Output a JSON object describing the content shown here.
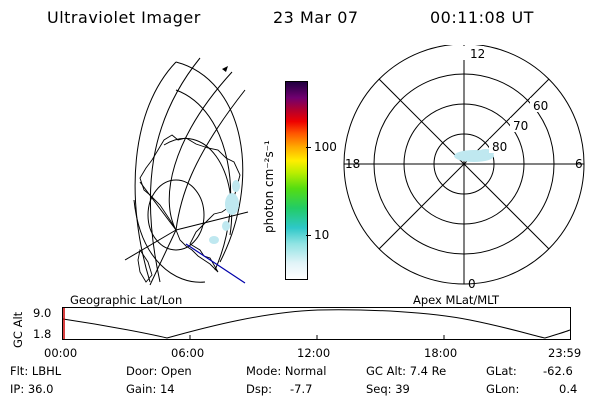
{
  "header": {
    "title": "Ultraviolet Imager",
    "date": "23 Mar 07",
    "time": "00:11:08 UT"
  },
  "colorbar": {
    "unit": "photon cm⁻²s⁻¹",
    "ticks": [
      "100",
      "10"
    ]
  },
  "polar": {
    "mlt_labels": [
      "12",
      "18",
      "6",
      "0"
    ],
    "lat_labels": [
      "60",
      "70",
      "80"
    ]
  },
  "panels": {
    "left_label": "Geographic Lat/Lon",
    "right_label": "Apex MLat/MLT"
  },
  "altitude_plot": {
    "axis_label": "GC Alt",
    "y_ticks": [
      "9.0",
      "1.8"
    ],
    "x_ticks": [
      "00:00",
      "06:00",
      "12:00",
      "18:00",
      "23:59"
    ]
  },
  "footer": {
    "flt": "Flt: LBHL",
    "ip": "IP: 36.0",
    "door": "Door: Open",
    "gain": "Gain: 14",
    "mode": "Mode: Normal",
    "dsp_label": "Dsp:",
    "dsp_value": "-7.7",
    "gc_alt": "GC Alt: 7.4 Re",
    "seq": "Seq: 39",
    "glat_label": "GLat:",
    "glat_value": "-62.6",
    "glon_label": "GLon:",
    "glon_value": "0.4"
  },
  "colors": {
    "background": "#ffffff",
    "ink": "#000000",
    "aurora": "#bfe8f0",
    "marker": "#cc0000",
    "track": "#0000aa"
  }
}
